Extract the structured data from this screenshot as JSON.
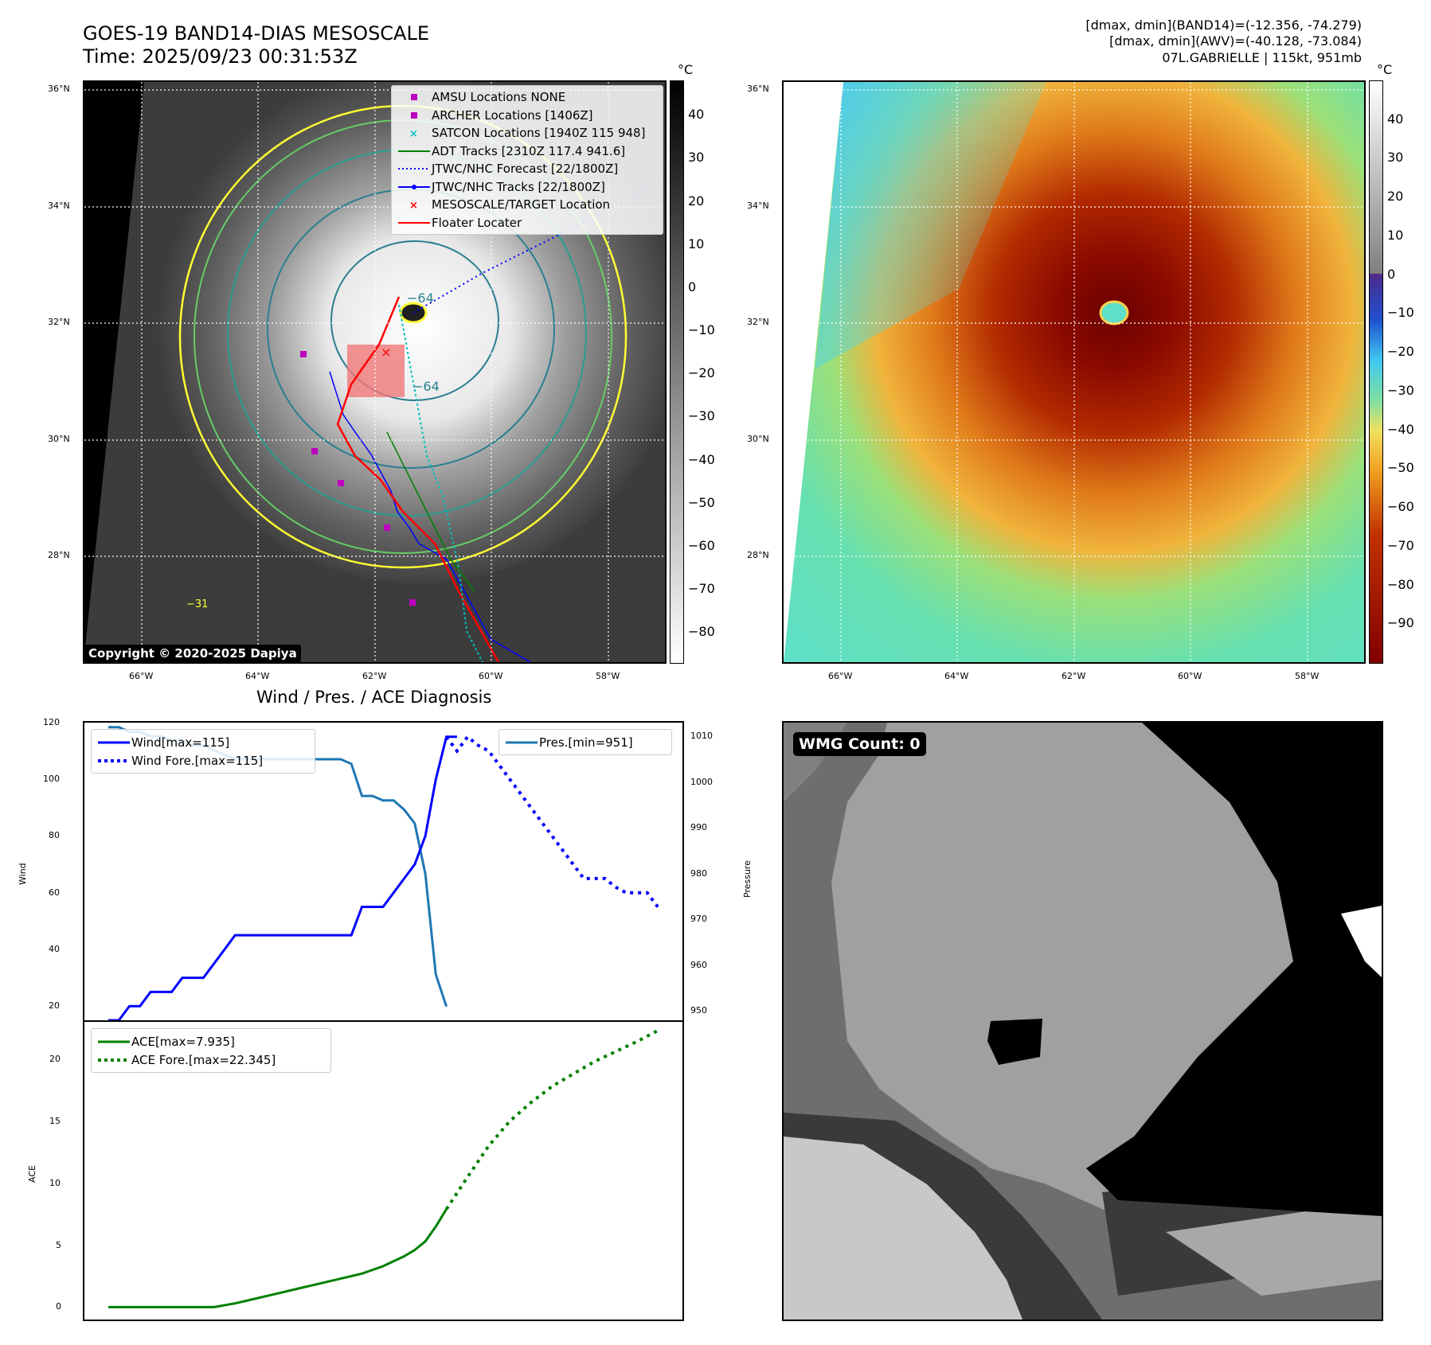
{
  "header": {
    "title_line1": "GOES-19 BAND14-DIAS MESOSCALE",
    "title_line2": "Time: 2025/09/23 00:31:53Z",
    "info_line1": "[dmax, dmin](BAND14)=(-12.356, -74.279)",
    "info_line2": "[dmax, dmin](AWV)=(-40.128, -73.084)",
    "info_line3": "07L.GABRIELLE | 115kt, 951mb"
  },
  "ir_map": {
    "lat_ticks": [
      "36°N",
      "34°N",
      "32°N",
      "30°N",
      "28°N"
    ],
    "lon_ticks": [
      "66°W",
      "64°W",
      "62°W",
      "60°W",
      "58°W"
    ],
    "contour_labels": [
      "−64",
      "−64",
      "−31"
    ],
    "copyright": "Copyright © 2020-2025 Dapiya",
    "colorbar_unit": "°C",
    "colorbar_ticks": [
      "40",
      "30",
      "20",
      "10",
      "0",
      "−10",
      "−20",
      "−30",
      "−40",
      "−50",
      "−60",
      "−70",
      "−80"
    ],
    "legend": [
      {
        "label": "AMSU Locations NONE",
        "symbol": "square",
        "color": "#bf00bf"
      },
      {
        "label": "ARCHER Locations [1406Z]",
        "symbol": "square",
        "color": "#bf00bf"
      },
      {
        "label": "SATCON Locations [1940Z 115 948]",
        "symbol": "x",
        "color": "#00bfbf"
      },
      {
        "label": "ADT Tracks [2310Z 117.4 941.6]",
        "symbol": "line",
        "color": "#008000"
      },
      {
        "label": "JTWC/NHC Forecast [22/1800Z]",
        "symbol": "dotted",
        "color": "#0000ff"
      },
      {
        "label": "JTWC/NHC Tracks [22/1800Z]",
        "symbol": "line-dot",
        "color": "#0000ff"
      },
      {
        "label": "MESOSCALE/TARGET Location",
        "symbol": "x",
        "color": "#ff0000"
      },
      {
        "label": "Floater Locater",
        "symbol": "line",
        "color": "#ff0000"
      }
    ]
  },
  "color_map": {
    "lat_ticks": [
      "36°N",
      "34°N",
      "32°N",
      "30°N",
      "28°N"
    ],
    "lon_ticks": [
      "66°W",
      "64°W",
      "62°W",
      "60°W",
      "58°W"
    ],
    "colorbar_unit": "°C",
    "colorbar_ticks": [
      "40",
      "30",
      "20",
      "10",
      "0",
      "−10",
      "−20",
      "−30",
      "−40",
      "−50",
      "−60",
      "−70",
      "−80",
      "−90"
    ]
  },
  "wmg": {
    "badge": "WMG Count: 0"
  },
  "chart_data": [
    {
      "type": "line",
      "title": "Wind / Pres. / ACE Diagnosis",
      "ylabel": "Wind",
      "ylabel_right": "Pressure",
      "ylim": [
        15,
        120
      ],
      "ylim_right": [
        948,
        1013
      ],
      "yticks": [
        20,
        40,
        60,
        80,
        100,
        120
      ],
      "yticks_right": [
        950,
        960,
        970,
        980,
        990,
        1000,
        1010
      ],
      "series": [
        {
          "name": "Wind[max=115]",
          "axis": "left",
          "style": "solid",
          "color": "#0000ff",
          "x": [
            0,
            1,
            2,
            3,
            4,
            5,
            6,
            7,
            8,
            9,
            10,
            11,
            12,
            13,
            14,
            15,
            16,
            17,
            18,
            19,
            20,
            21,
            22,
            23,
            24,
            25,
            26,
            27,
            28,
            29,
            30,
            31,
            32,
            33
          ],
          "values": [
            15,
            15,
            20,
            20,
            25,
            25,
            25,
            30,
            30,
            30,
            35,
            40,
            45,
            45,
            45,
            45,
            45,
            45,
            45,
            45,
            45,
            45,
            45,
            45,
            55,
            55,
            55,
            60,
            65,
            70,
            80,
            100,
            115,
            115
          ]
        },
        {
          "name": "Wind Fore.[max=115]",
          "axis": "left",
          "style": "dotted",
          "color": "#0000ff",
          "x": [
            32,
            33,
            34,
            35,
            36,
            37,
            38,
            39,
            40,
            41,
            42,
            43,
            44,
            45,
            46,
            47,
            48,
            49,
            50,
            51,
            52
          ],
          "values": [
            115,
            110,
            115,
            112,
            110,
            105,
            100,
            95,
            90,
            85,
            80,
            75,
            70,
            65,
            65,
            65,
            62,
            60,
            60,
            60,
            55
          ]
        },
        {
          "name": "Pres.[min=951]",
          "axis": "right",
          "style": "solid",
          "color": "#1f77b4",
          "x": [
            0,
            1,
            2,
            3,
            4,
            5,
            6,
            7,
            8,
            9,
            10,
            11,
            12,
            13,
            14,
            15,
            16,
            17,
            18,
            19,
            20,
            21,
            22,
            23,
            24,
            25,
            26,
            27,
            28,
            29,
            30,
            31,
            32
          ],
          "values": [
            1012,
            1012,
            1011,
            1011,
            1010,
            1010,
            1009,
            1009,
            1008,
            1008,
            1007,
            1006,
            1005,
            1005,
            1005,
            1005,
            1005,
            1005,
            1005,
            1005,
            1005,
            1005,
            1005,
            1004,
            997,
            997,
            996,
            996,
            994,
            991,
            980,
            958,
            951
          ]
        }
      ]
    },
    {
      "type": "line",
      "ylabel": "ACE",
      "ylim": [
        -1,
        23
      ],
      "yticks": [
        0,
        5,
        10,
        15,
        20
      ],
      "series": [
        {
          "name": "ACE[max=7.935]",
          "style": "solid",
          "color": "#008000",
          "x": [
            0,
            2,
            4,
            6,
            8,
            10,
            12,
            14,
            16,
            18,
            20,
            22,
            24,
            26,
            28,
            29,
            30,
            31,
            32
          ],
          "values": [
            0,
            0,
            0,
            0,
            0,
            0,
            0.3,
            0.7,
            1.1,
            1.5,
            1.9,
            2.3,
            2.7,
            3.3,
            4.1,
            4.6,
            5.3,
            6.5,
            7.9
          ]
        },
        {
          "name": "ACE Fore.[max=22.345]",
          "style": "dotted",
          "color": "#008000",
          "x": [
            32,
            34,
            36,
            38,
            40,
            42,
            44,
            46,
            48,
            50,
            52
          ],
          "values": [
            7.9,
            10.5,
            13.0,
            15.0,
            16.5,
            17.8,
            18.8,
            19.8,
            20.6,
            21.4,
            22.3
          ]
        }
      ]
    }
  ]
}
